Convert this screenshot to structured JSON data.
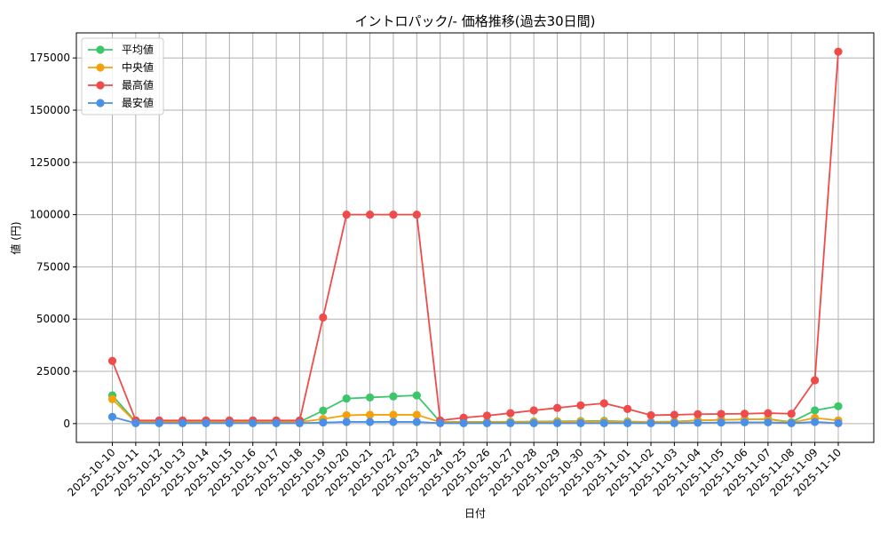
{
  "chart_data": {
    "type": "line",
    "title": "イントロパック/- 価格推移(過去30日間)",
    "xlabel": "日付",
    "ylabel": "値 (円)",
    "ylim": [
      -9000,
      187000
    ],
    "yticks": [
      0,
      25000,
      50000,
      75000,
      100000,
      125000,
      150000,
      175000
    ],
    "grid": true,
    "legend_position": "top-left",
    "categories": [
      "2025-10-10",
      "2025-10-11",
      "2025-10-12",
      "2025-10-13",
      "2025-10-14",
      "2025-10-15",
      "2025-10-16",
      "2025-10-17",
      "2025-10-18",
      "2025-10-19",
      "2025-10-20",
      "2025-10-21",
      "2025-10-22",
      "2025-10-23",
      "2025-10-24",
      "2025-10-25",
      "2025-10-26",
      "2025-10-27",
      "2025-10-28",
      "2025-10-29",
      "2025-10-30",
      "2025-10-31",
      "2025-11-01",
      "2025-11-02",
      "2025-11-03",
      "2025-11-04",
      "2025-11-05",
      "2025-11-06",
      "2025-11-07",
      "2025-11-08",
      "2025-11-09",
      "2025-11-10"
    ],
    "series": [
      {
        "name": "平均値",
        "color": "#3cc66a",
        "values": [
          13500,
          800,
          800,
          800,
          800,
          800,
          800,
          800,
          800,
          6200,
          12000,
          12500,
          13000,
          13500,
          800,
          800,
          800,
          900,
          1000,
          1100,
          1200,
          1300,
          1000,
          800,
          1000,
          1500,
          1800,
          2000,
          2200,
          700,
          6300,
          8300
        ]
      },
      {
        "name": "中央値",
        "color": "#f5a20a",
        "values": [
          11700,
          700,
          700,
          700,
          700,
          700,
          700,
          700,
          700,
          2200,
          4000,
          4200,
          4200,
          4200,
          700,
          700,
          700,
          700,
          800,
          900,
          1000,
          1000,
          800,
          700,
          800,
          1500,
          1800,
          2000,
          2100,
          500,
          2700,
          1500
        ]
      },
      {
        "name": "最高値",
        "color": "#ef4b4b",
        "values": [
          30000,
          1500,
          1500,
          1500,
          1500,
          1500,
          1500,
          1500,
          1500,
          50800,
          100000,
          100000,
          100000,
          100000,
          1500,
          2800,
          3800,
          5000,
          6300,
          7500,
          8700,
          9700,
          7000,
          4000,
          4200,
          4500,
          4600,
          4700,
          5000,
          4700,
          20700,
          178000
        ]
      },
      {
        "name": "最安値",
        "color": "#4a90e8",
        "values": [
          3200,
          200,
          200,
          200,
          200,
          200,
          200,
          200,
          200,
          500,
          800,
          800,
          800,
          800,
          200,
          200,
          200,
          200,
          200,
          200,
          200,
          200,
          200,
          200,
          200,
          400,
          500,
          600,
          600,
          200,
          800,
          200
        ]
      }
    ]
  }
}
